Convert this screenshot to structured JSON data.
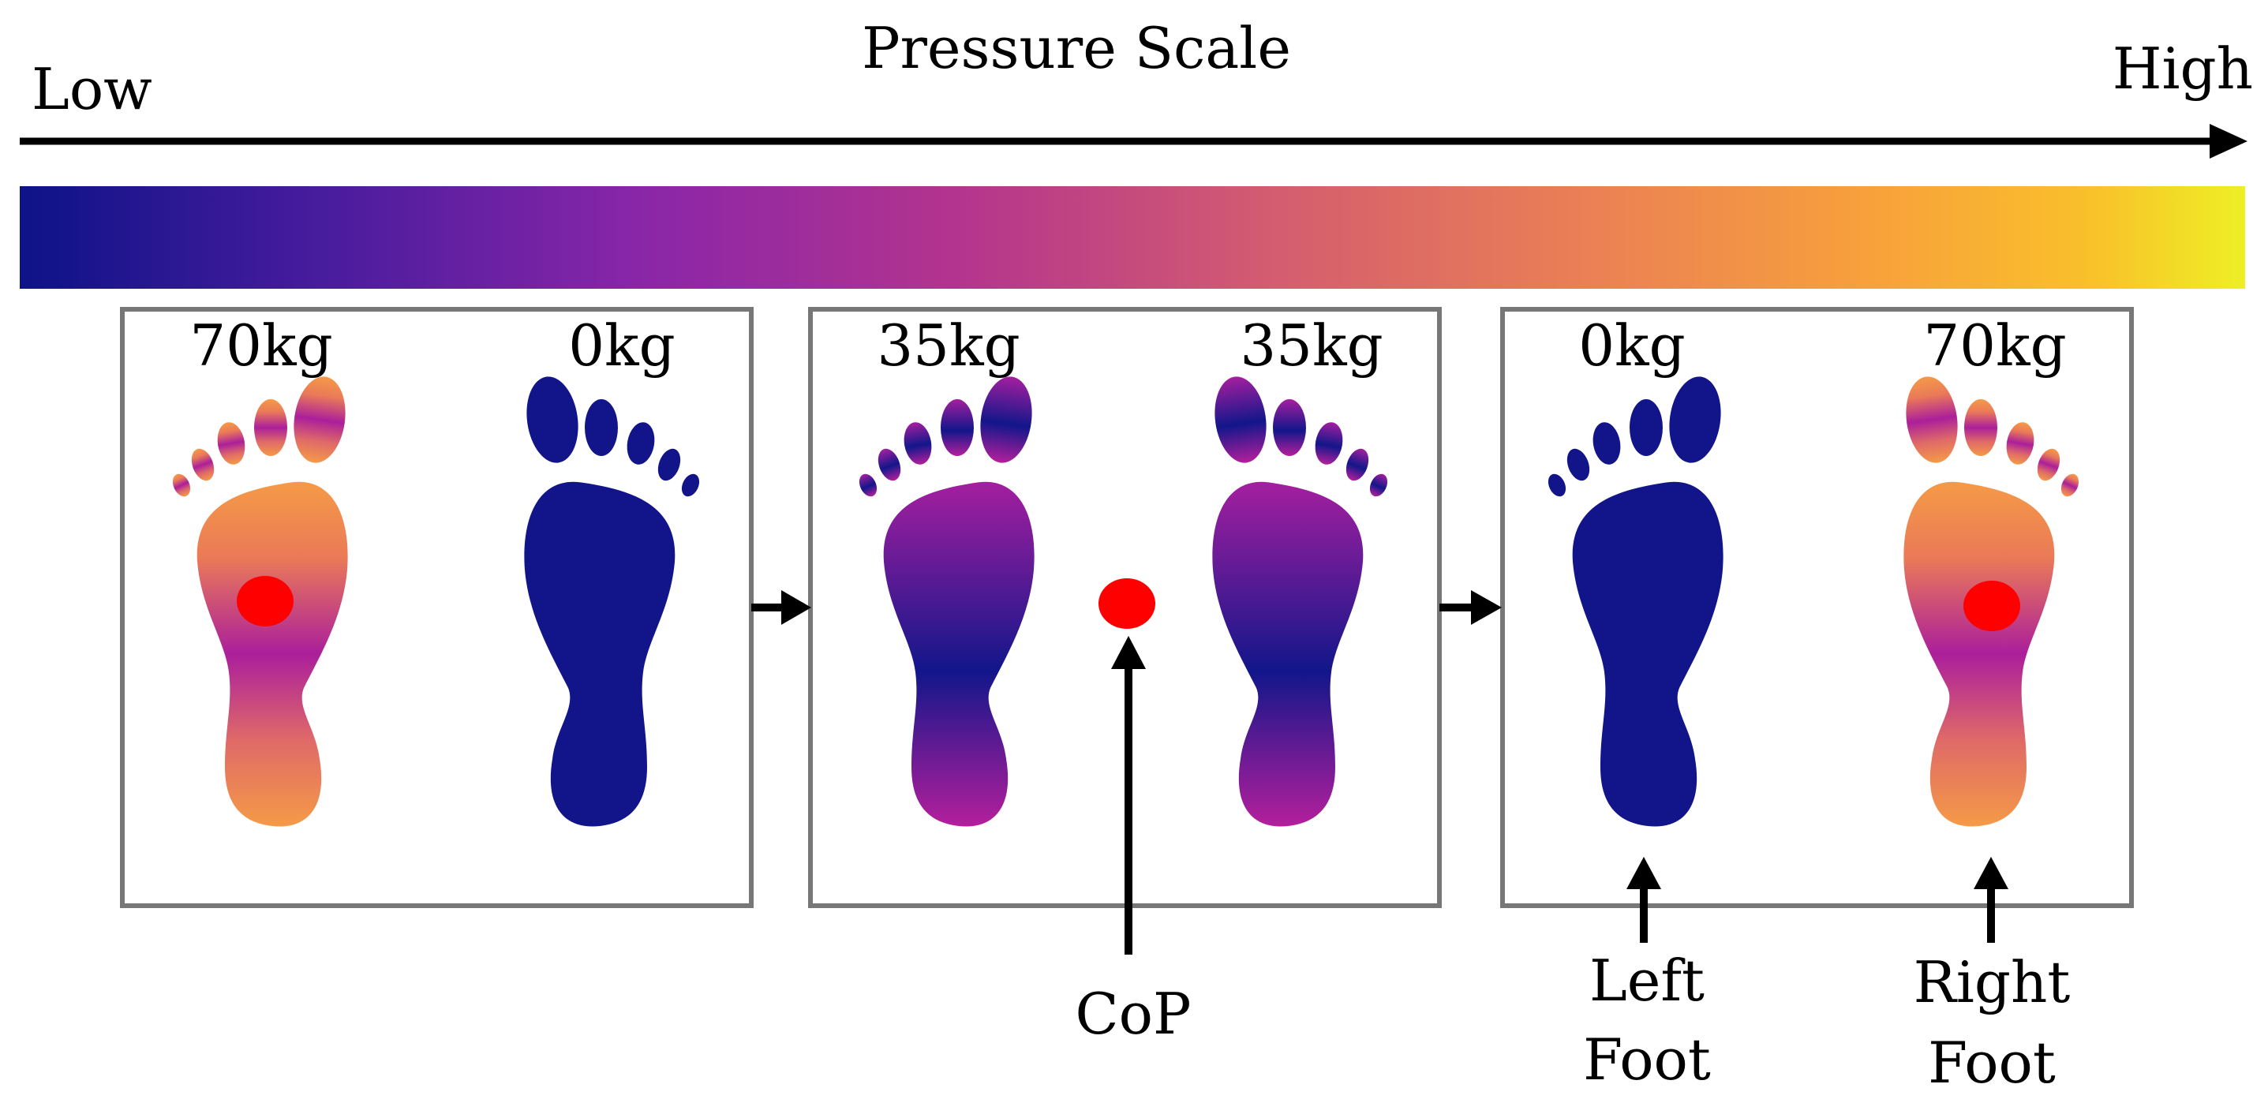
{
  "scale": {
    "title": "Pressure Scale",
    "low_label": "Low",
    "high_label": "High",
    "gradient_colors": [
      "#0d1387",
      "#5a1ea0",
      "#8e2aa5",
      "#b8368f",
      "#d85e6e",
      "#ec8450",
      "#f8a33a",
      "#fbbd29",
      "#f0f024"
    ]
  },
  "panels": [
    {
      "left_weight": "70kg",
      "right_weight": "0kg"
    },
    {
      "left_weight": "35kg",
      "right_weight": "35kg"
    },
    {
      "left_weight": "0kg",
      "right_weight": "70kg"
    }
  ],
  "annotations": {
    "cop": "CoP",
    "left_foot_line1": "Left",
    "left_foot_line2": "Foot",
    "right_foot_line1": "Right",
    "right_foot_line2": "Foot"
  },
  "colors": {
    "low": "#12158a",
    "mid": "#ad2199",
    "orange": "#f59a47",
    "cop": "#ff0000",
    "frame": "#777777"
  }
}
